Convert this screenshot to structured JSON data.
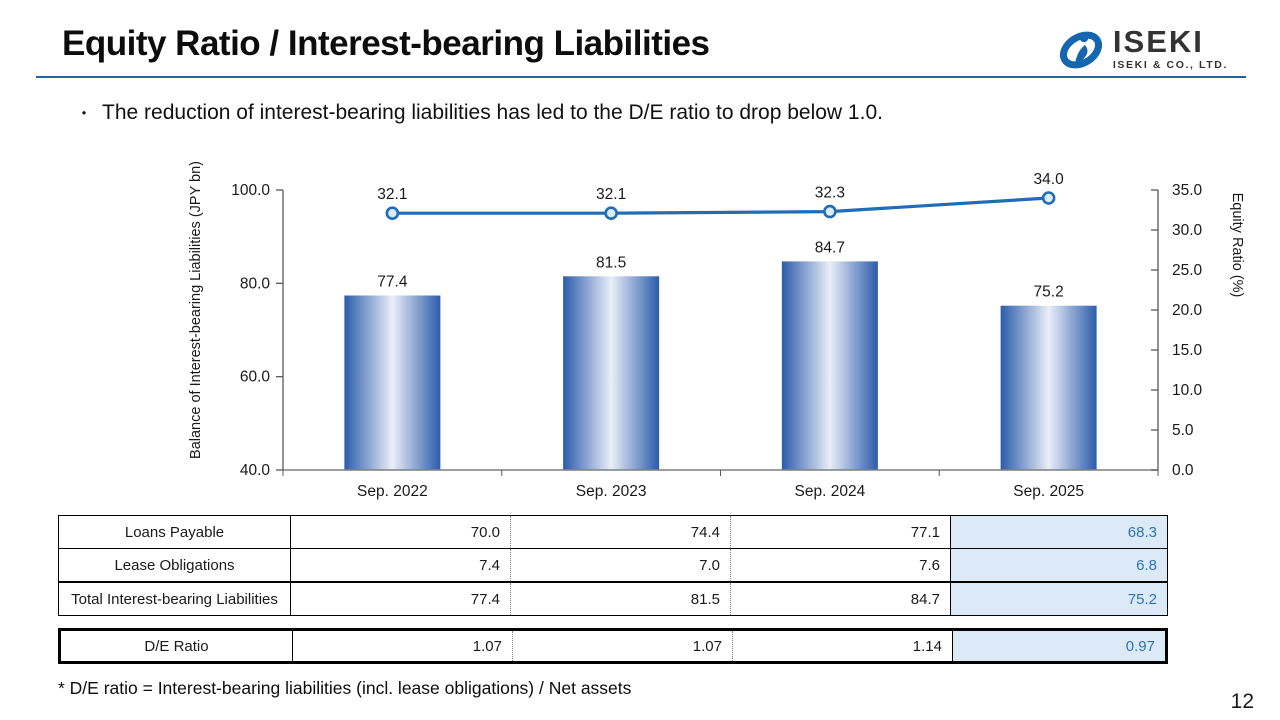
{
  "slide": {
    "title": "Equity Ratio / Interest-bearing Liabilities",
    "bullet_marker": "・",
    "bullet_text": "The reduction of interest-bearing liabilities has led to the D/E ratio to drop below 1.0.",
    "footnote": "* D/E ratio = Interest-bearing liabilities (incl. lease obligations) / Net assets",
    "page_number": "12"
  },
  "logo": {
    "brand": "ISEKI",
    "subtitle": "ISEKI & CO., LTD.",
    "mark_color": "#1565B0"
  },
  "colors": {
    "title_rule": "#25639E",
    "line_blue": "#1F6DB6",
    "marker_fill": "#DDEBF7",
    "bar_edge": "#2C5CAB",
    "bar_center": "#E9EEF8",
    "axis_gray": "#7F7F7F",
    "tick_gray": "#595959",
    "label_dark": "#1A1A1A",
    "highlight_bg": "#DCE9F6",
    "highlight_text": "#2E74B5"
  },
  "chart_data": {
    "type": "bar+line",
    "categories": [
      "Sep. 2022",
      "Sep. 2023",
      "Sep. 2024",
      "Sep. 2025"
    ],
    "series": [
      {
        "name": "Balance of Interest-bearing Liabilities",
        "type": "bar",
        "axis": "left",
        "values": [
          77.4,
          81.5,
          84.7,
          75.2
        ],
        "labels": [
          "77.4",
          "81.5",
          "84.7",
          "75.2"
        ]
      },
      {
        "name": "Equity Ratio",
        "type": "line",
        "axis": "right",
        "values": [
          32.1,
          32.1,
          32.3,
          34.0
        ],
        "labels": [
          "32.1",
          "32.1",
          "32.3",
          "34.0"
        ]
      }
    ],
    "left_axis": {
      "label": "Balance of Interest-bearing Liabilities (JPY bn)",
      "min": 40,
      "max": 100,
      "ticks": [
        "40.0",
        "60.0",
        "80.0",
        "100.0"
      ]
    },
    "right_axis": {
      "label": "Equity Ratio (%)",
      "min": 0,
      "max": 35,
      "ticks": [
        "0.0",
        "5.0",
        "10.0",
        "15.0",
        "20.0",
        "25.0",
        "30.0",
        "35.0"
      ]
    },
    "grid": false,
    "legend": "none"
  },
  "table": {
    "highlight_column_index": 3,
    "rows": [
      {
        "label": "Loans Payable",
        "values": [
          "70.0",
          "74.4",
          "77.1",
          "68.3"
        ],
        "emphasis": false
      },
      {
        "label": "Lease Obligations",
        "values": [
          "7.4",
          "7.0",
          "7.6",
          "6.8"
        ],
        "emphasis": false
      },
      {
        "label": "Total Interest-bearing Liabilities",
        "values": [
          "77.4",
          "81.5",
          "84.7",
          "75.2"
        ],
        "emphasis": true
      }
    ],
    "de_row": {
      "label": "D/E Ratio",
      "values": [
        "1.07",
        "1.07",
        "1.14",
        "0.97"
      ]
    }
  }
}
